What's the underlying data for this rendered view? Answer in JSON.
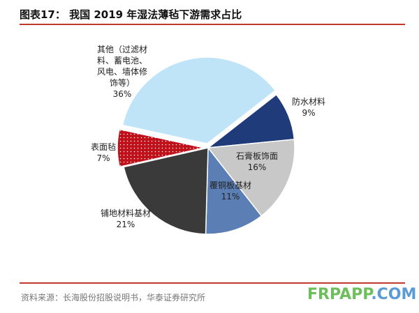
{
  "title": "图表17：  我国 2019 年湿法薄毡下游需求占比",
  "source": "资料来源：长海股份招股说明书，华泰证券研究所",
  "watermark": {
    "part1": "FRPAPP",
    "part2": ".COM"
  },
  "chart_data": {
    "type": "pie",
    "title": "我国 2019 年湿法薄毡下游需求占比",
    "slices": [
      {
        "name": "防水材料",
        "value": 9,
        "label": "9%",
        "color": "#1f3b7a"
      },
      {
        "name": "石膏板饰面",
        "value": 16,
        "label": "16%",
        "color": "#c8c8c8"
      },
      {
        "name": "覆铜板基材",
        "value": 11,
        "label": "11%",
        "color": "#5b7fb5"
      },
      {
        "name": "铺地材料基材",
        "value": 21,
        "label": "21%",
        "color": "#3a3a3a"
      },
      {
        "name": "表面毡",
        "value": 7,
        "label": "7%",
        "color": "#c0101a"
      },
      {
        "name": "其他（过滤材料、蓄电池、风电、墙体修饰等）",
        "value": 36,
        "label": "36%",
        "color": "#bfe4f7"
      }
    ]
  }
}
